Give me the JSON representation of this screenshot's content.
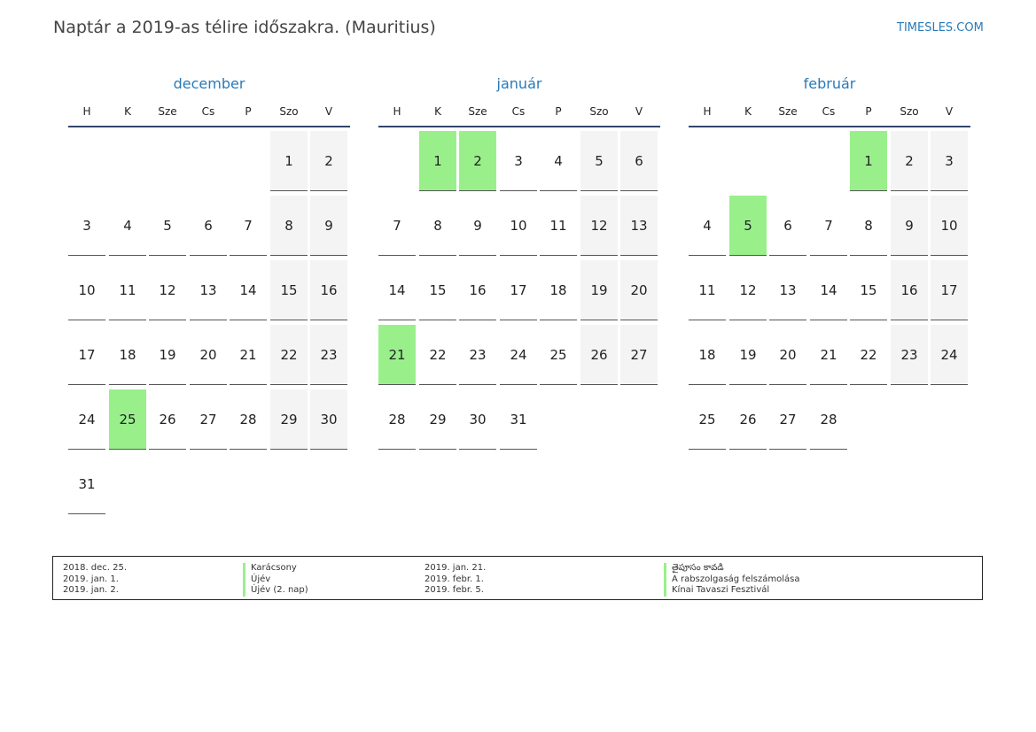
{
  "title": "Naptár a 2019-as télire időszakra. (Mauritius)",
  "brand": "TIMESLES.COM",
  "weekdays": [
    "H",
    "K",
    "Sze",
    "Cs",
    "P",
    "Szo",
    "V"
  ],
  "colors": {
    "accent": "#2a7ab8",
    "holiday": "#99f08b",
    "weekend": "#f4f4f4",
    "rule": "#33466b"
  },
  "months": [
    {
      "name": "december",
      "start": 5,
      "days": 31,
      "holidays": [
        25
      ]
    },
    {
      "name": "január",
      "start": 1,
      "days": 31,
      "holidays": [
        1,
        2,
        21
      ]
    },
    {
      "name": "február",
      "start": 4,
      "days": 28,
      "holidays": [
        1,
        5
      ]
    }
  ],
  "legend": [
    {
      "date": "2018. dec. 25.",
      "name": "Karácsony"
    },
    {
      "date": "2019. jan. 1.",
      "name": "Újév"
    },
    {
      "date": "2019. jan. 2.",
      "name": "Újév (2. nap)"
    },
    {
      "date": "2019. jan. 21.",
      "name": "తైపూసం కావడి"
    },
    {
      "date": "2019. febr. 1.",
      "name": "A rabszolgaság felszámolása"
    },
    {
      "date": "2019. febr. 5.",
      "name": "Kínai Tavaszi Fesztivál"
    }
  ]
}
